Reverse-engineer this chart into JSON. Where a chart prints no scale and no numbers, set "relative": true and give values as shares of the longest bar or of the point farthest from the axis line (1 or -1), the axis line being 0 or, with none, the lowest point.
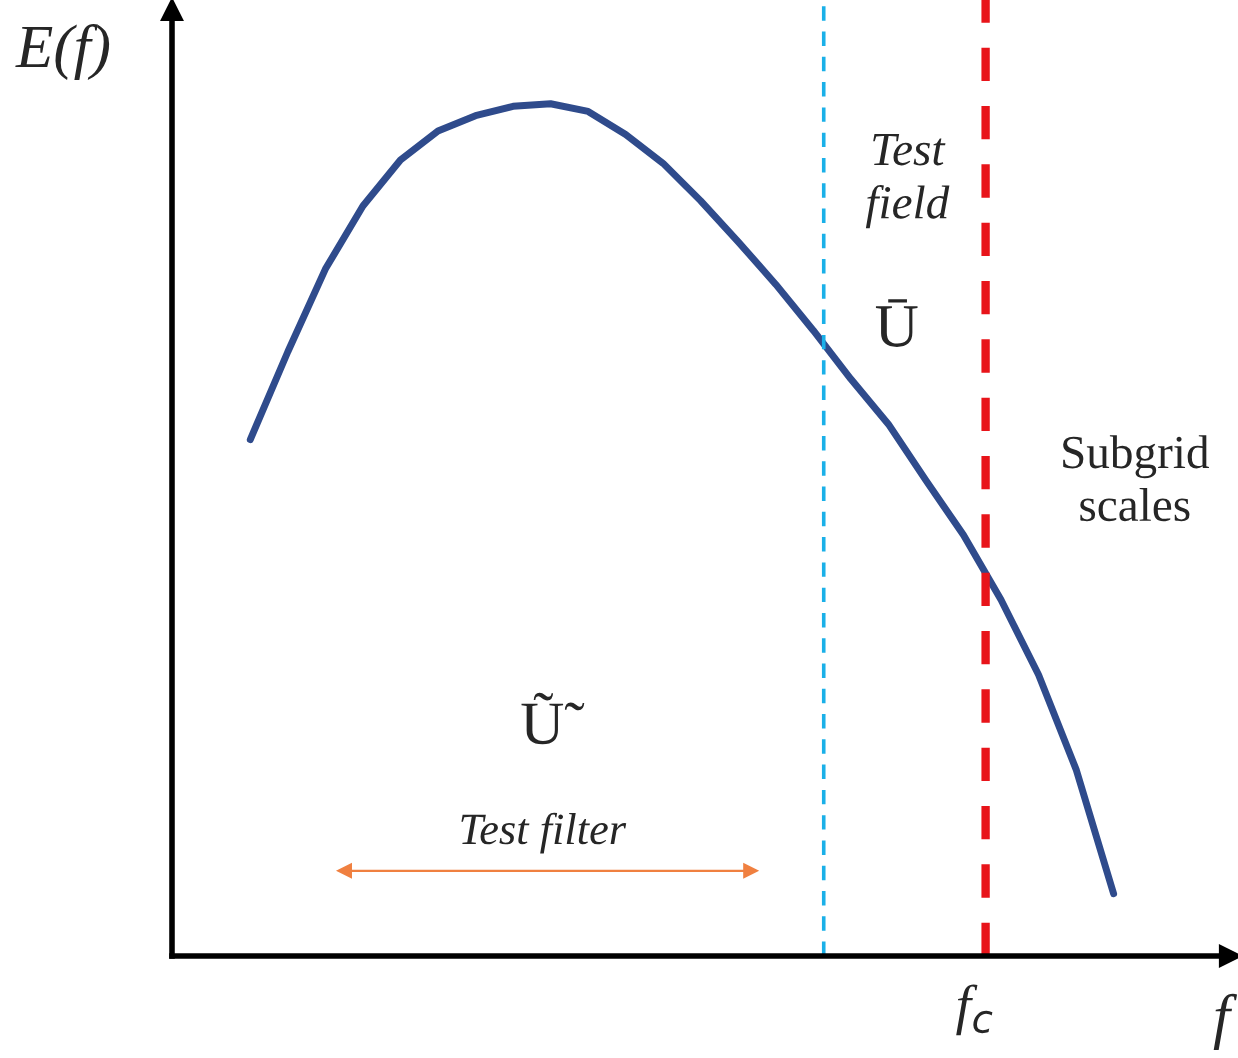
{
  "chart_data": {
    "type": "line",
    "relative": true,
    "xlabel": "f",
    "ylabel": "E(f)",
    "categories": [
      null,
      null,
      null,
      null,
      null,
      null,
      null,
      null,
      null,
      null,
      null,
      null,
      null,
      null,
      null,
      null,
      null,
      null,
      null,
      null,
      null,
      null,
      null,
      null
    ],
    "series": [
      {
        "color": "#2f4b8c",
        "values": [
          0.606,
          0.709,
          0.806,
          0.88,
          0.934,
          0.968,
          0.986,
          0.997,
          1.0,
          0.991,
          0.964,
          0.93,
          0.886,
          0.838,
          0.788,
          0.734,
          0.677,
          0.624,
          0.558,
          0.494,
          0.418,
          0.33,
          0.219,
          0.073
        ]
      }
    ],
    "ref_lines": [
      {
        "axis": "x",
        "color": "#1ab0e8",
        "line_style": "dashed"
      },
      {
        "axis": "x",
        "color": "#e8141a",
        "line_style": "dashed",
        "label": "f$_{c}$"
      }
    ],
    "annotations": [
      "Test field",
      "Ū",
      "Subgrid scales",
      "Ũ̃",
      "Test filter"
    ]
  }
}
